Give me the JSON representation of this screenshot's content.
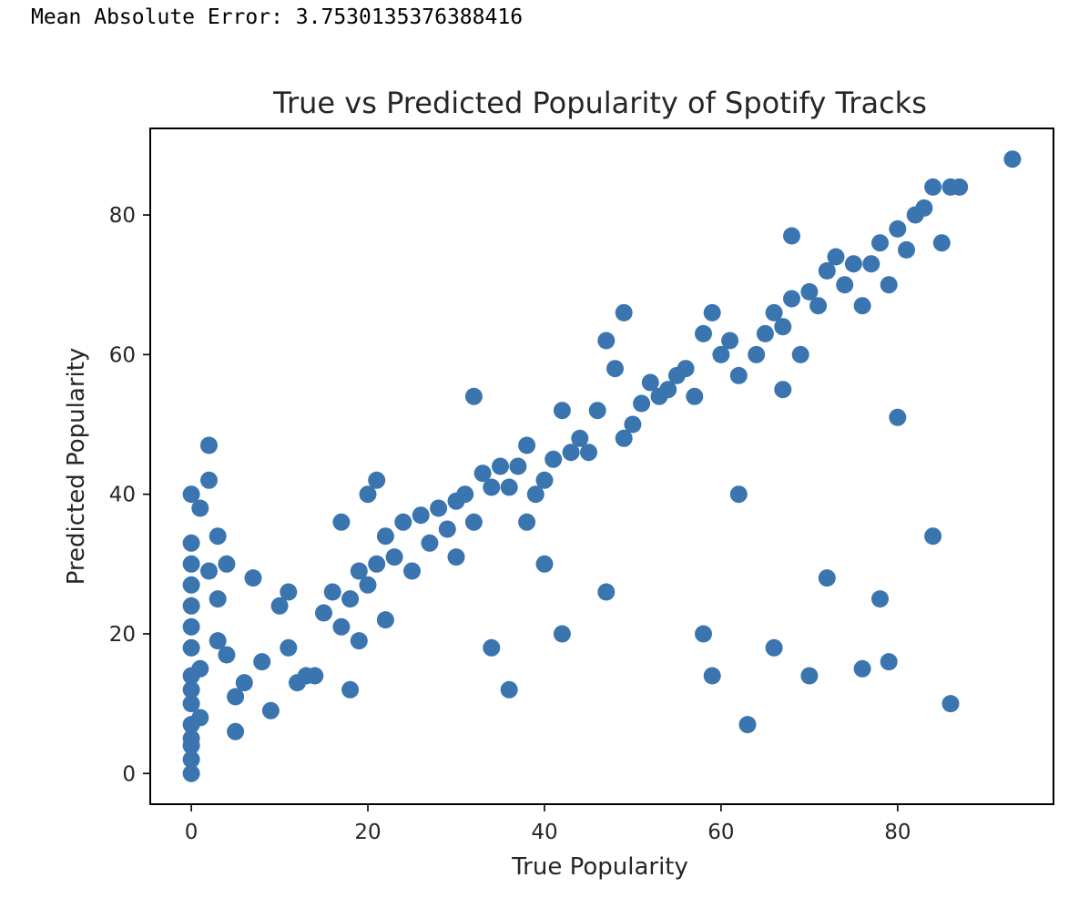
{
  "output": {
    "mae_text": "Mean Absolute Error: 3.7530135376388416"
  },
  "colors": {
    "marker": "#3b75af",
    "axes": "#000000",
    "text": "#262626"
  },
  "chart_data": {
    "type": "scatter",
    "title": "True vs Predicted Popularity of Spotify Tracks",
    "xlabel": "True Popularity",
    "ylabel": "Predicted Popularity",
    "xlim": [
      -4.65,
      97.65
    ],
    "ylim": [
      -4.4,
      92.4
    ],
    "xticks": [
      0,
      20,
      40,
      60,
      80
    ],
    "xtick_labels": [
      "0",
      "20",
      "40",
      "60",
      "80"
    ],
    "yticks": [
      0,
      20,
      40,
      60,
      80
    ],
    "ytick_labels": [
      "0",
      "20",
      "40",
      "60",
      "80"
    ],
    "grid": false,
    "legend": "none",
    "x": [
      0,
      0,
      0,
      0,
      0,
      0,
      0,
      0,
      0,
      0,
      0,
      0,
      0,
      0,
      0,
      1,
      1,
      1,
      2,
      2,
      2,
      3,
      3,
      3,
      4,
      4,
      5,
      5,
      6,
      7,
      8,
      9,
      10,
      11,
      11,
      12,
      13,
      14,
      15,
      16,
      17,
      17,
      18,
      18,
      19,
      19,
      20,
      20,
      21,
      21,
      22,
      22,
      23,
      24,
      25,
      26,
      27,
      28,
      29,
      30,
      30,
      31,
      32,
      32,
      33,
      34,
      34,
      35,
      36,
      36,
      37,
      38,
      38,
      39,
      40,
      40,
      41,
      42,
      42,
      43,
      44,
      45,
      46,
      47,
      47,
      48,
      49,
      49,
      50,
      51,
      52,
      53,
      54,
      55,
      56,
      57,
      58,
      58,
      59,
      59,
      60,
      61,
      62,
      62,
      63,
      64,
      65,
      66,
      66,
      67,
      67,
      68,
      68,
      69,
      70,
      70,
      71,
      72,
      72,
      73,
      74,
      75,
      76,
      76,
      77,
      78,
      78,
      79,
      79,
      80,
      80,
      81,
      82,
      83,
      84,
      84,
      85,
      86,
      86,
      87,
      93
    ],
    "y": [
      40,
      30,
      24,
      18,
      14,
      10,
      7,
      4,
      2,
      0,
      33,
      27,
      21,
      12,
      5,
      38,
      15,
      8,
      47,
      42,
      29,
      34,
      25,
      19,
      30,
      17,
      11,
      6,
      13,
      28,
      16,
      9,
      24,
      26,
      18,
      13,
      14,
      14,
      23,
      26,
      36,
      21,
      25,
      12,
      29,
      19,
      40,
      27,
      42,
      30,
      34,
      22,
      31,
      36,
      29,
      37,
      33,
      38,
      35,
      39,
      31,
      40,
      54,
      36,
      43,
      41,
      18,
      44,
      41,
      12,
      44,
      47,
      36,
      40,
      42,
      30,
      45,
      52,
      20,
      46,
      48,
      46,
      52,
      62,
      26,
      58,
      66,
      48,
      50,
      53,
      56,
      54,
      55,
      57,
      58,
      54,
      63,
      20,
      66,
      14,
      60,
      62,
      57,
      40,
      7,
      60,
      63,
      66,
      18,
      64,
      55,
      77,
      68,
      60,
      69,
      14,
      67,
      72,
      28,
      74,
      70,
      73,
      67,
      15,
      73,
      76,
      25,
      70,
      16,
      78,
      51,
      75,
      80,
      81,
      84,
      34,
      76,
      84,
      10,
      84,
      88
    ]
  }
}
